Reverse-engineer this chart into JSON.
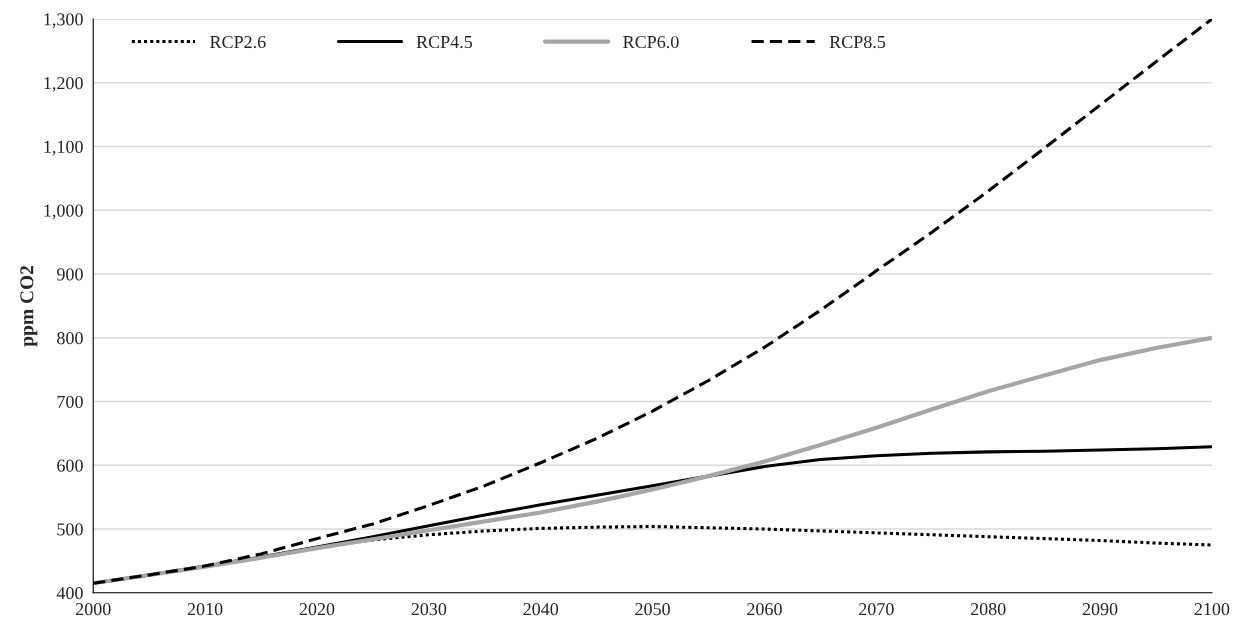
{
  "chart_data": {
    "type": "line",
    "ylabel": "ppm CO2",
    "x": [
      2000,
      2005,
      2010,
      2015,
      2020,
      2025,
      2030,
      2035,
      2040,
      2045,
      2050,
      2055,
      2060,
      2065,
      2070,
      2075,
      2080,
      2085,
      2090,
      2095,
      2100
    ],
    "series": [
      {
        "name": "RCP2.6",
        "color": "#000000",
        "line_style": "dotted",
        "values": [
          415,
          428,
          441,
          456,
          471,
          483,
          491,
          497,
          501,
          503,
          504,
          502,
          500,
          497,
          494,
          491,
          488,
          485,
          482,
          478,
          475
        ]
      },
      {
        "name": "RCP4.5",
        "color": "#000000",
        "line_style": "solid",
        "values": [
          415,
          428,
          442,
          456,
          472,
          488,
          505,
          522,
          538,
          553,
          568,
          583,
          598,
          609,
          615,
          619,
          621,
          622,
          624,
          626,
          629
        ]
      },
      {
        "name": "RCP6.0",
        "color": "#a6a6a6",
        "line_style": "solid",
        "values": [
          415,
          428,
          441,
          455,
          470,
          484,
          498,
          512,
          526,
          543,
          562,
          583,
          606,
          632,
          659,
          688,
          716,
          741,
          765,
          784,
          800
        ]
      },
      {
        "name": "RCP8.5",
        "color": "#000000",
        "line_style": "dashed",
        "values": [
          415,
          428,
          442,
          461,
          485,
          508,
          537,
          568,
          604,
          642,
          685,
          733,
          785,
          843,
          905,
          966,
          1030,
          1097,
          1165,
          1233,
          1300
        ]
      }
    ],
    "xlim": [
      2000,
      2100
    ],
    "xticks": [
      2000,
      2010,
      2020,
      2030,
      2040,
      2050,
      2060,
      2070,
      2080,
      2090,
      2100
    ],
    "ylim": [
      400,
      1300
    ],
    "yticks": [
      400,
      500,
      600,
      700,
      800,
      900,
      {
        "value": 1000,
        "label": "1,000"
      },
      {
        "value": 1100,
        "label": "1,100"
      },
      {
        "value": 1200,
        "label": "1,200"
      },
      {
        "value": 1300,
        "label": "1,300"
      }
    ],
    "grid": "y",
    "legend": "top left"
  }
}
